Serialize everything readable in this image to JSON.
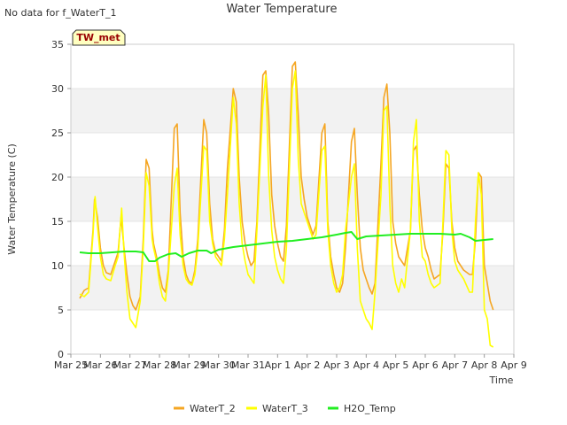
{
  "note": "No data for f_WaterT_1",
  "station_badge": "TW_met",
  "chart_data": {
    "type": "line",
    "title": "Water Temperature",
    "xlabel": "Time",
    "ylabel": "Water Temperature (C)",
    "ylim": [
      0,
      35
    ],
    "yticks": [
      0,
      5,
      10,
      15,
      20,
      25,
      30,
      35
    ],
    "xlim": [
      0,
      15
    ],
    "xticks": [
      {
        "v": 0,
        "label": "Mar 25"
      },
      {
        "v": 1,
        "label": "Mar 26"
      },
      {
        "v": 2,
        "label": "Mar 27"
      },
      {
        "v": 3,
        "label": "Mar 28"
      },
      {
        "v": 4,
        "label": "Mar 29"
      },
      {
        "v": 5,
        "label": "Mar 30"
      },
      {
        "v": 6,
        "label": "Mar 31"
      },
      {
        "v": 7,
        "label": "Apr 1"
      },
      {
        "v": 8,
        "label": "Apr 2"
      },
      {
        "v": 9,
        "label": "Apr 3"
      },
      {
        "v": 10,
        "label": "Apr 4"
      },
      {
        "v": 11,
        "label": "Apr 5"
      },
      {
        "v": 12,
        "label": "Apr 6"
      },
      {
        "v": 13,
        "label": "Apr 7"
      },
      {
        "v": 14,
        "label": "Apr 8"
      },
      {
        "v": 15,
        "label": "Apr 9"
      }
    ],
    "grid": "horizontal bands",
    "legend": "bottom-center",
    "series": [
      {
        "name": "WaterT_2",
        "color": "#f5a623",
        "x": [
          0.3,
          0.45,
          0.6,
          0.75,
          0.8,
          0.9,
          1.0,
          1.1,
          1.2,
          1.35,
          1.5,
          1.6,
          1.7,
          1.8,
          1.9,
          2.0,
          2.1,
          2.2,
          2.35,
          2.45,
          2.55,
          2.65,
          2.75,
          2.8,
          2.9,
          3.0,
          3.1,
          3.2,
          3.3,
          3.5,
          3.6,
          3.7,
          3.8,
          3.9,
          4.0,
          4.1,
          4.2,
          4.3,
          4.5,
          4.6,
          4.7,
          4.8,
          4.9,
          5.0,
          5.1,
          5.2,
          5.3,
          5.5,
          5.6,
          5.7,
          5.8,
          5.9,
          6.0,
          6.1,
          6.2,
          6.3,
          6.5,
          6.6,
          6.7,
          6.8,
          6.9,
          7.0,
          7.1,
          7.2,
          7.3,
          7.5,
          7.6,
          7.7,
          7.8,
          7.9,
          8.0,
          8.1,
          8.2,
          8.3,
          8.5,
          8.6,
          8.7,
          8.8,
          8.9,
          9.0,
          9.1,
          9.2,
          9.3,
          9.5,
          9.6,
          9.7,
          9.8,
          9.9,
          10.0,
          10.1,
          10.2,
          10.3,
          10.5,
          10.6,
          10.7,
          10.8,
          10.9,
          11.0,
          11.1,
          11.2,
          11.3,
          11.5,
          11.6,
          11.7,
          11.8,
          11.9,
          12.0,
          12.1,
          12.2,
          12.3,
          12.5,
          12.6,
          12.7,
          12.8,
          12.9,
          13.0,
          13.1,
          13.2,
          13.3,
          13.5,
          13.6,
          13.7,
          13.8,
          13.9,
          14.0,
          14.1,
          14.2,
          14.3
        ],
        "y": [
          6.3,
          7.2,
          7.5,
          14.0,
          17.5,
          15.5,
          12.0,
          10.0,
          9.2,
          9.0,
          10.5,
          11.5,
          15.5,
          12.0,
          9.0,
          6.5,
          5.5,
          5.0,
          6.5,
          13.0,
          22.0,
          21.0,
          14.0,
          12.5,
          11.0,
          9.0,
          7.5,
          7.0,
          9.5,
          25.5,
          26.0,
          16.0,
          11.0,
          9.0,
          8.2,
          8.0,
          9.5,
          13.0,
          26.5,
          25.0,
          17.0,
          13.0,
          11.5,
          11.0,
          10.5,
          14.0,
          21.0,
          30.0,
          28.5,
          20.0,
          15.0,
          12.5,
          11.0,
          10.0,
          10.5,
          15.0,
          31.5,
          32.0,
          27.0,
          18.0,
          14.5,
          12.5,
          11.0,
          10.5,
          14.5,
          32.5,
          33.0,
          27.0,
          20.0,
          17.5,
          15.5,
          14.5,
          13.5,
          14.5,
          25.0,
          26.0,
          15.0,
          11.0,
          9.0,
          7.5,
          7.0,
          8.0,
          12.0,
          24.0,
          25.5,
          18.0,
          12.0,
          9.5,
          8.5,
          7.5,
          6.8,
          8.0,
          21.5,
          29.0,
          30.5,
          25.0,
          15.0,
          12.5,
          11.0,
          10.5,
          10.0,
          14.0,
          23.0,
          23.5,
          18.0,
          14.0,
          12.0,
          11.0,
          9.5,
          8.5,
          9.0,
          14.0,
          21.5,
          21.0,
          15.0,
          12.0,
          10.5,
          10.0,
          9.5,
          9.0,
          9.0,
          13.0,
          20.5,
          20.0,
          10.0,
          8.0,
          6.0,
          5.0
        ]
      },
      {
        "name": "WaterT_3",
        "color": "#ffff00",
        "x": [
          0.3,
          0.45,
          0.6,
          0.75,
          0.82,
          0.9,
          1.0,
          1.1,
          1.2,
          1.35,
          1.5,
          1.6,
          1.72,
          1.8,
          1.9,
          2.0,
          2.1,
          2.2,
          2.35,
          2.45,
          2.55,
          2.65,
          2.75,
          2.8,
          2.9,
          3.0,
          3.1,
          3.2,
          3.3,
          3.5,
          3.6,
          3.7,
          3.8,
          3.9,
          4.0,
          4.1,
          4.2,
          4.3,
          4.5,
          4.6,
          4.7,
          4.8,
          4.9,
          5.0,
          5.1,
          5.2,
          5.3,
          5.5,
          5.6,
          5.7,
          5.8,
          5.9,
          6.0,
          6.1,
          6.2,
          6.3,
          6.5,
          6.6,
          6.7,
          6.8,
          6.9,
          7.0,
          7.1,
          7.2,
          7.3,
          7.5,
          7.6,
          7.7,
          7.8,
          7.9,
          8.0,
          8.1,
          8.2,
          8.3,
          8.5,
          8.6,
          8.7,
          8.8,
          8.9,
          9.0,
          9.1,
          9.2,
          9.3,
          9.5,
          9.6,
          9.7,
          9.8,
          9.9,
          10.0,
          10.1,
          10.2,
          10.3,
          10.5,
          10.6,
          10.7,
          10.8,
          10.9,
          11.0,
          11.1,
          11.2,
          11.3,
          11.5,
          11.6,
          11.7,
          11.8,
          11.9,
          12.0,
          12.1,
          12.2,
          12.3,
          12.5,
          12.6,
          12.7,
          12.8,
          12.9,
          13.0,
          13.1,
          13.2,
          13.3,
          13.5,
          13.6,
          13.7,
          13.8,
          13.9,
          14.0,
          14.1,
          14.2,
          14.3
        ],
        "y": [
          6.8,
          6.5,
          7.0,
          13.5,
          17.8,
          14.5,
          11.0,
          9.0,
          8.5,
          8.3,
          10.0,
          11.0,
          16.5,
          11.5,
          7.0,
          4.0,
          3.5,
          3.0,
          6.0,
          12.0,
          20.5,
          19.0,
          13.0,
          12.0,
          10.5,
          8.0,
          6.5,
          6.0,
          9.0,
          19.0,
          21.0,
          13.5,
          10.0,
          8.5,
          8.0,
          7.8,
          9.0,
          12.0,
          23.5,
          23.0,
          15.0,
          12.5,
          11.0,
          10.5,
          10.0,
          13.0,
          18.0,
          29.0,
          26.0,
          17.0,
          12.5,
          10.5,
          9.0,
          8.5,
          8.0,
          14.0,
          28.0,
          31.5,
          20.0,
          14.0,
          11.0,
          9.5,
          8.5,
          8.0,
          12.0,
          30.0,
          32.0,
          22.0,
          17.0,
          16.0,
          15.0,
          14.0,
          13.0,
          13.5,
          23.0,
          23.5,
          14.0,
          10.0,
          8.0,
          7.0,
          7.5,
          9.0,
          14.0,
          20.0,
          21.5,
          12.0,
          6.0,
          5.0,
          4.0,
          3.5,
          2.8,
          7.0,
          18.0,
          27.5,
          28.0,
          17.0,
          10.0,
          8.0,
          7.0,
          8.5,
          7.5,
          14.0,
          24.0,
          26.5,
          15.0,
          11.0,
          10.5,
          9.0,
          8.0,
          7.5,
          8.0,
          15.0,
          23.0,
          22.5,
          14.0,
          10.5,
          9.5,
          9.0,
          8.5,
          7.0,
          7.0,
          15.0,
          20.5,
          18.0,
          5.0,
          4.0,
          1.0,
          0.8
        ]
      },
      {
        "name": "H2O_Temp",
        "color": "#22ee22",
        "x": [
          0.3,
          0.6,
          1.0,
          1.4,
          1.8,
          2.2,
          2.45,
          2.65,
          2.85,
          3.0,
          3.3,
          3.55,
          3.75,
          4.0,
          4.3,
          4.6,
          4.75,
          5.0,
          5.5,
          6.0,
          6.5,
          7.0,
          7.5,
          8.0,
          8.5,
          9.0,
          9.3,
          9.5,
          9.7,
          10.0,
          10.5,
          11.0,
          11.5,
          12.0,
          12.5,
          13.0,
          13.2,
          13.5,
          13.7,
          14.0,
          14.3
        ],
        "y": [
          11.5,
          11.4,
          11.4,
          11.5,
          11.6,
          11.6,
          11.5,
          10.5,
          10.5,
          10.9,
          11.3,
          11.4,
          11.0,
          11.4,
          11.7,
          11.7,
          11.4,
          11.8,
          12.1,
          12.3,
          12.5,
          12.7,
          12.8,
          13.0,
          13.2,
          13.5,
          13.7,
          13.8,
          13.0,
          13.3,
          13.4,
          13.5,
          13.6,
          13.6,
          13.6,
          13.5,
          13.6,
          13.2,
          12.8,
          12.9,
          13.0
        ]
      }
    ]
  }
}
